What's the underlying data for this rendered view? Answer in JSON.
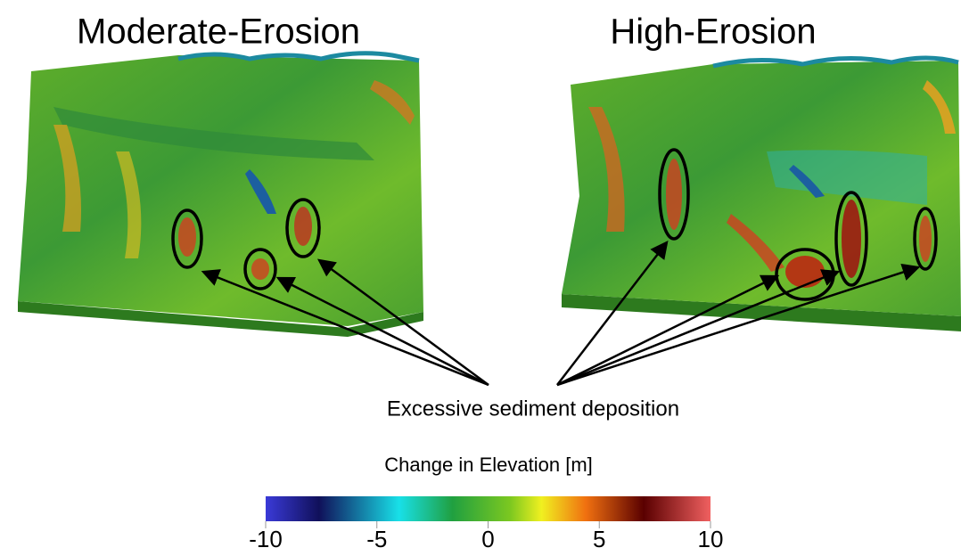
{
  "panels": [
    {
      "title": "Moderate-Erosion"
    },
    {
      "title": "High-Erosion"
    }
  ],
  "annotation": "Excessive sediment deposition",
  "colorbar": {
    "title": "Change in Elevation [m]",
    "lim": [
      -10,
      10
    ],
    "ticks": [
      -10,
      -5,
      0,
      5,
      10
    ]
  }
}
